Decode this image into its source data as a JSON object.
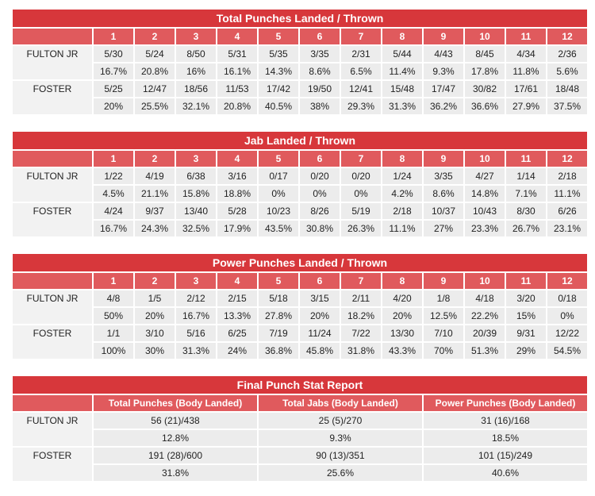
{
  "tables": [
    {
      "title": "Total Punches Landed / Thrown",
      "columns": [
        "1",
        "2",
        "3",
        "4",
        "5",
        "6",
        "7",
        "8",
        "9",
        "10",
        "11",
        "12"
      ],
      "rows": [
        {
          "name": "FULTON JR",
          "cells": [
            "5/30",
            "5/24",
            "8/50",
            "5/31",
            "5/35",
            "3/35",
            "2/31",
            "5/44",
            "4/43",
            "8/45",
            "4/34",
            "2/36"
          ],
          "percentages": [
            "16.7%",
            "20.8%",
            "16%",
            "16.1%",
            "14.3%",
            "8.6%",
            "6.5%",
            "11.4%",
            "9.3%",
            "17.8%",
            "11.8%",
            "5.6%"
          ]
        },
        {
          "name": "FOSTER",
          "cells": [
            "5/25",
            "12/47",
            "18/56",
            "11/53",
            "17/42",
            "19/50",
            "12/41",
            "15/48",
            "17/47",
            "30/82",
            "17/61",
            "18/48"
          ],
          "percentages": [
            "20%",
            "25.5%",
            "32.1%",
            "20.8%",
            "40.5%",
            "38%",
            "29.3%",
            "31.3%",
            "36.2%",
            "36.6%",
            "27.9%",
            "37.5%"
          ]
        }
      ]
    },
    {
      "title": "Jab Landed / Thrown",
      "columns": [
        "1",
        "2",
        "3",
        "4",
        "5",
        "6",
        "7",
        "8",
        "9",
        "10",
        "11",
        "12"
      ],
      "rows": [
        {
          "name": "FULTON JR",
          "cells": [
            "1/22",
            "4/19",
            "6/38",
            "3/16",
            "0/17",
            "0/20",
            "0/20",
            "1/24",
            "3/35",
            "4/27",
            "1/14",
            "2/18"
          ],
          "percentages": [
            "4.5%",
            "21.1%",
            "15.8%",
            "18.8%",
            "0%",
            "0%",
            "0%",
            "4.2%",
            "8.6%",
            "14.8%",
            "7.1%",
            "11.1%"
          ]
        },
        {
          "name": "FOSTER",
          "cells": [
            "4/24",
            "9/37",
            "13/40",
            "5/28",
            "10/23",
            "8/26",
            "5/19",
            "2/18",
            "10/37",
            "10/43",
            "8/30",
            "6/26"
          ],
          "percentages": [
            "16.7%",
            "24.3%",
            "32.5%",
            "17.9%",
            "43.5%",
            "30.8%",
            "26.3%",
            "11.1%",
            "27%",
            "23.3%",
            "26.7%",
            "23.1%"
          ]
        }
      ]
    },
    {
      "title": "Power Punches Landed / Thrown",
      "columns": [
        "1",
        "2",
        "3",
        "4",
        "5",
        "6",
        "7",
        "8",
        "9",
        "10",
        "11",
        "12"
      ],
      "rows": [
        {
          "name": "FULTON JR",
          "cells": [
            "4/8",
            "1/5",
            "2/12",
            "2/15",
            "5/18",
            "3/15",
            "2/11",
            "4/20",
            "1/8",
            "4/18",
            "3/20",
            "0/18"
          ],
          "percentages": [
            "50%",
            "20%",
            "16.7%",
            "13.3%",
            "27.8%",
            "20%",
            "18.2%",
            "20%",
            "12.5%",
            "22.2%",
            "15%",
            "0%"
          ]
        },
        {
          "name": "FOSTER",
          "cells": [
            "1/1",
            "3/10",
            "5/16",
            "6/25",
            "7/19",
            "11/24",
            "7/22",
            "13/30",
            "7/10",
            "20/39",
            "9/31",
            "12/22"
          ],
          "percentages": [
            "100%",
            "30%",
            "31.3%",
            "24%",
            "36.8%",
            "45.8%",
            "31.8%",
            "43.3%",
            "70%",
            "51.3%",
            "29%",
            "54.5%"
          ]
        }
      ]
    },
    {
      "title": "Final Punch Stat Report",
      "columns": [
        "Total Punches (Body Landed)",
        "Total Jabs (Body Landed)",
        "Power Punches (Body Landed)"
      ],
      "rows": [
        {
          "name": "FULTON JR",
          "cells": [
            "56 (21)/438",
            "25 (5)/270",
            "31 (16)/168"
          ],
          "percentages": [
            "12.8%",
            "9.3%",
            "18.5%"
          ]
        },
        {
          "name": "FOSTER",
          "cells": [
            "191 (28)/600",
            "90 (13)/351",
            "101 (15)/249"
          ],
          "percentages": [
            "31.8%",
            "25.6%",
            "40.6%"
          ]
        }
      ]
    }
  ]
}
